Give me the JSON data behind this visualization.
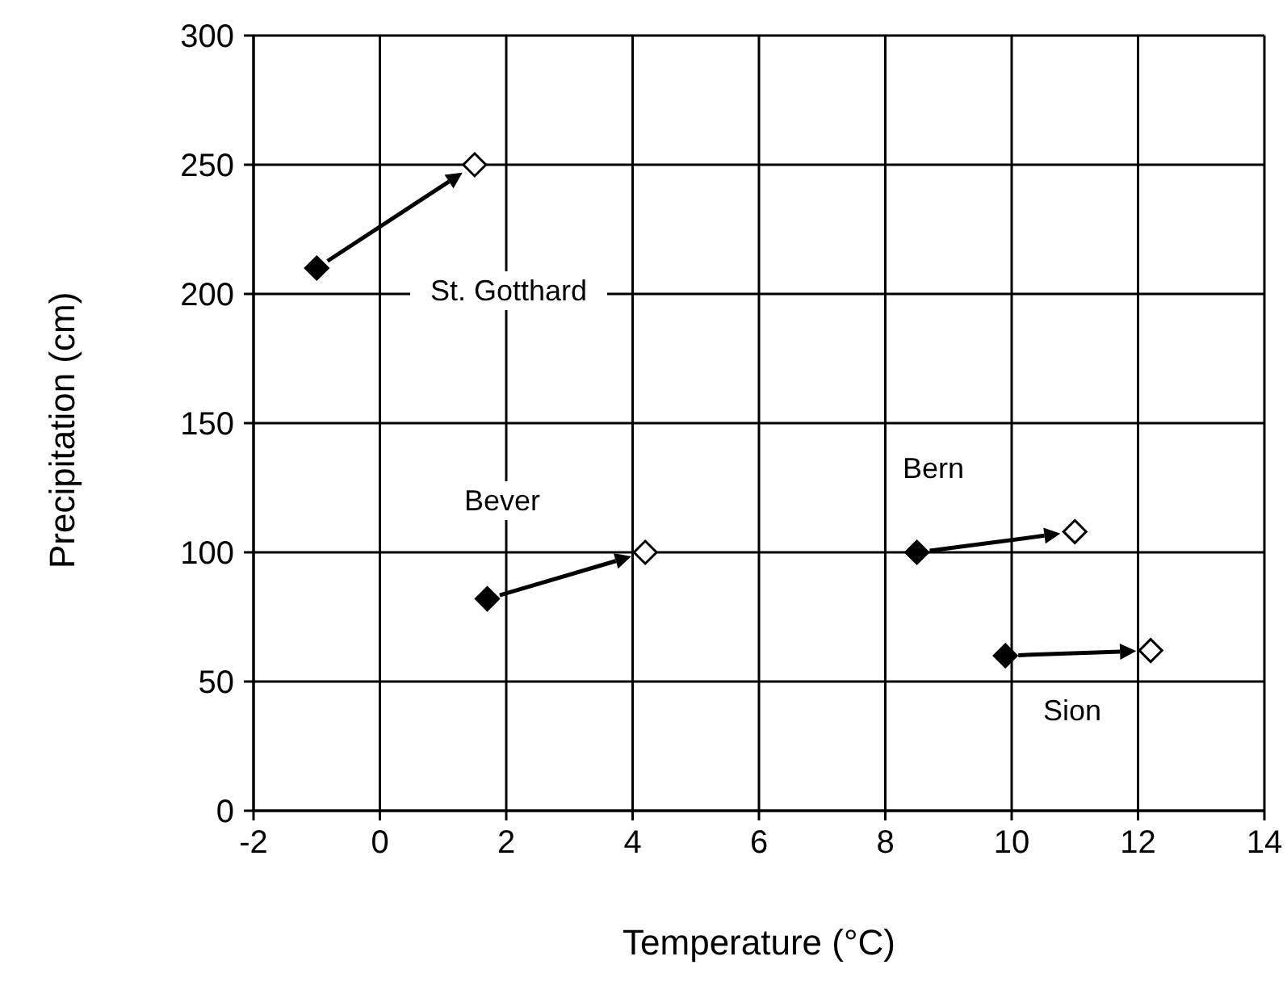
{
  "chart_data": {
    "type": "scatter",
    "xlabel": "Temperature (°C)",
    "ylabel": "Precipitation (cm)",
    "series": [
      {
        "color": "#000000",
        "x": [
          -1.0,
          1.7,
          8.5,
          9.9
        ],
        "values": [
          210,
          82,
          100,
          60
        ]
      },
      {
        "color": "#000000",
        "x": [
          1.5,
          4.2,
          11.0,
          12.2
        ],
        "values": [
          250,
          100,
          108,
          62
        ]
      }
    ],
    "annotations": [
      "St. Gotthard",
      "Bever",
      "Bern",
      "Sion"
    ],
    "marker": "diamond",
    "grid": true,
    "xlim": [
      -2,
      14
    ],
    "xticks": [
      -2,
      0,
      2,
      4,
      6,
      8,
      10,
      12,
      14
    ],
    "ylim": [
      0,
      300
    ],
    "yticks": [
      0,
      50,
      100,
      150,
      200,
      250,
      300
    ]
  }
}
